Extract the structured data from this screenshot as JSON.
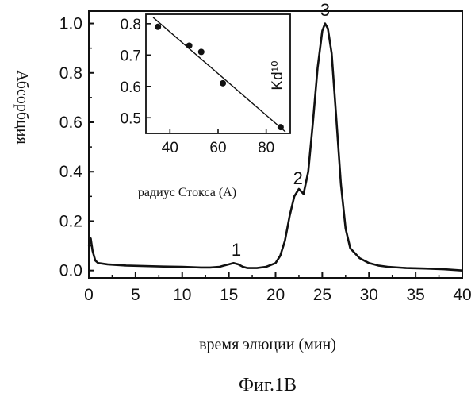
{
  "chart_data": [
    {
      "type": "line",
      "title": "",
      "xlabel": "время элюции (мин)",
      "ylabel": "Абсорбция",
      "xlim": [
        0,
        40
      ],
      "ylim": [
        -0.03,
        1.05
      ],
      "xticks": [
        0,
        5,
        10,
        15,
        20,
        25,
        30,
        35,
        40
      ],
      "xtick_labels": [
        "0",
        "5",
        "10",
        "15",
        "20",
        "25",
        "30",
        "35",
        "40"
      ],
      "yticks": [
        0.0,
        0.2,
        0.4,
        0.6,
        0.8,
        1.0
      ],
      "ytick_labels": [
        "0.0",
        "0.2",
        "0.4",
        "0.6",
        "0.8",
        "1.0"
      ],
      "grid": false,
      "series": [
        {
          "x": [
            0,
            0.2,
            0.4,
            0.7,
            1,
            2,
            4,
            6,
            8,
            10,
            12,
            13,
            14,
            14.5,
            15,
            15.5,
            16,
            16.5,
            17,
            18,
            19,
            20,
            20.5,
            21,
            21.5,
            22,
            22.5,
            23,
            23.5,
            24,
            24.5,
            25,
            25.3,
            25.6,
            26,
            26.5,
            27,
            27.5,
            28,
            28.5,
            29,
            30,
            31,
            32,
            34,
            36,
            38,
            40
          ],
          "y": [
            0.1,
            0.13,
            0.08,
            0.04,
            0.03,
            0.025,
            0.02,
            0.018,
            0.016,
            0.015,
            0.012,
            0.012,
            0.015,
            0.02,
            0.025,
            0.03,
            0.025,
            0.015,
            0.01,
            0.01,
            0.015,
            0.03,
            0.06,
            0.12,
            0.22,
            0.3,
            0.33,
            0.31,
            0.4,
            0.6,
            0.82,
            0.97,
            1.0,
            0.98,
            0.88,
            0.62,
            0.35,
            0.17,
            0.09,
            0.07,
            0.05,
            0.03,
            0.02,
            0.015,
            0.01,
            0.008,
            0.005,
            0.0
          ]
        }
      ],
      "annotations": [
        {
          "text": "1",
          "x": 15.8,
          "y": 0.06
        },
        {
          "text": "2",
          "x": 22.4,
          "y": 0.35
        },
        {
          "text": "3",
          "x": 25.3,
          "y": 1.03
        }
      ]
    },
    {
      "type": "scatter",
      "title": "",
      "xlabel": "радиус Стокса (A)",
      "ylabel": "Kd¹⁰",
      "xlim": [
        30,
        90
      ],
      "ylim": [
        0.45,
        0.83
      ],
      "xticks": [
        40,
        60,
        80
      ],
      "xtick_labels": [
        "40",
        "60",
        "80"
      ],
      "yticks": [
        0.5,
        0.6,
        0.7,
        0.8
      ],
      "ytick_labels": [
        "0.5",
        "0.6",
        "0.7",
        "0.8"
      ],
      "grid": false,
      "points": {
        "x": [
          35,
          48,
          53,
          62,
          86
        ],
        "y": [
          0.79,
          0.73,
          0.71,
          0.61,
          0.47
        ]
      },
      "fit_line": {
        "x": [
          33,
          88
        ],
        "y": [
          0.82,
          0.455
        ]
      }
    }
  ],
  "caption": "Фиг.1B"
}
